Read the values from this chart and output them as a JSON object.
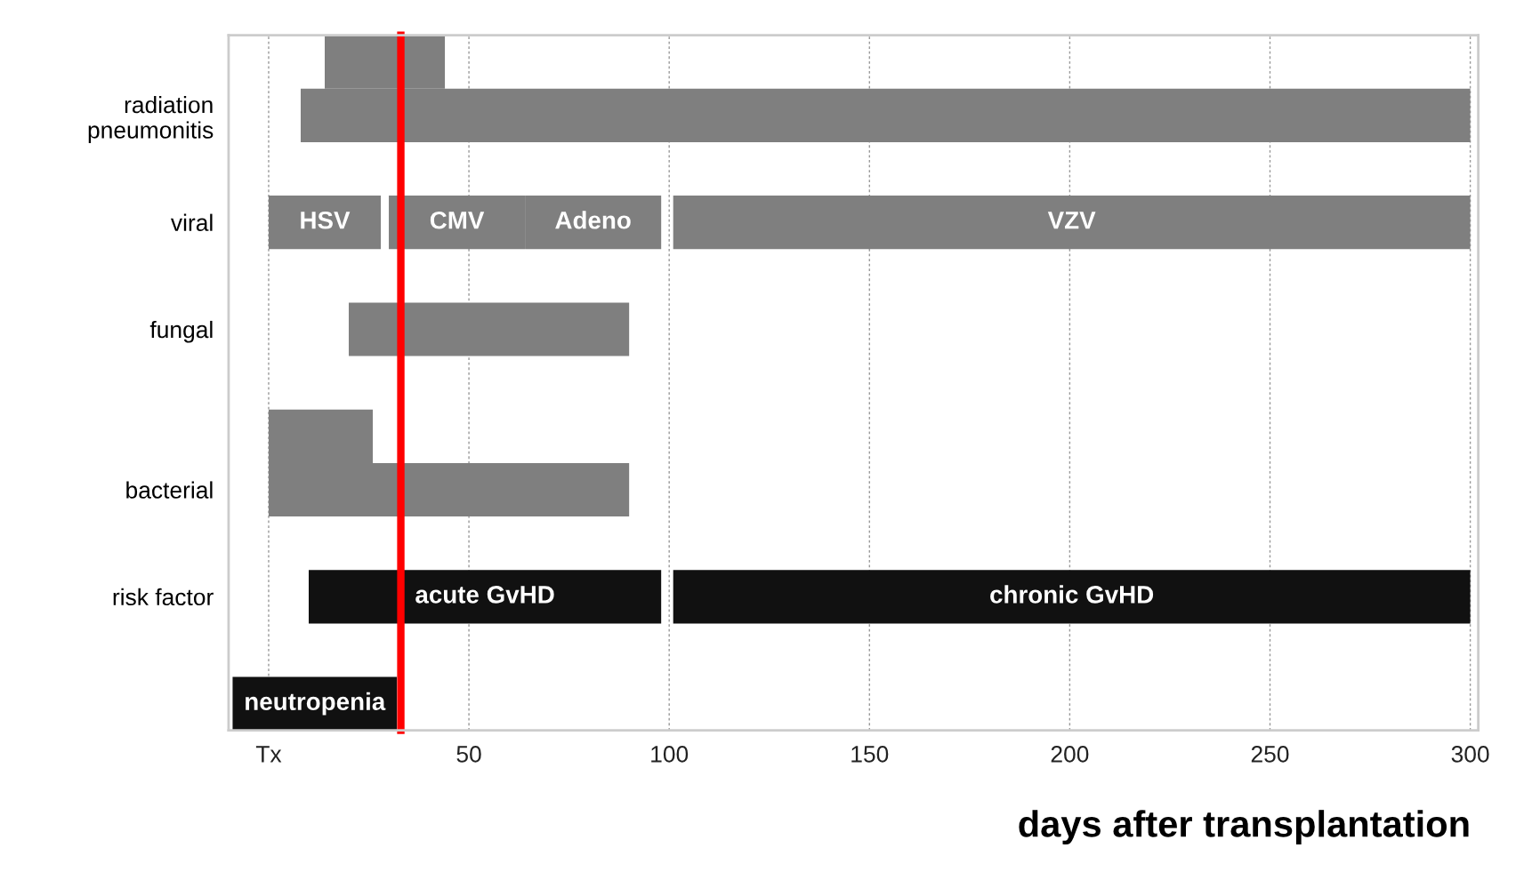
{
  "chart_data": {
    "type": "bar",
    "orientation": "horizontal",
    "xlabel": "days after transplantation",
    "categories": [
      null,
      "radiation pneumonitis",
      null,
      "viral",
      null,
      "fungal",
      null,
      null,
      "bacterial",
      null,
      "risk factor",
      null,
      null
    ],
    "series": [
      {
        "color": "#7f7f7f",
        "values": [
          30,
          292,
          null,
          28,
          null,
          70,
          null,
          26,
          90,
          null,
          null,
          null,
          null
        ],
        "base": [
          14,
          8,
          null,
          0,
          null,
          20,
          null,
          0,
          0,
          null,
          null,
          null,
          null
        ],
        "value_labels": [
          null,
          null,
          null,
          "HSV",
          null,
          null,
          null,
          null,
          null,
          null,
          null,
          null,
          null
        ]
      },
      {
        "color": "#7f7f7f",
        "values": [
          null,
          null,
          null,
          34,
          null,
          null,
          null,
          null,
          null,
          null,
          null,
          null,
          null
        ],
        "base": [
          null,
          null,
          null,
          30,
          null,
          null,
          null,
          null,
          null,
          null,
          null,
          null,
          null
        ],
        "value_labels": [
          null,
          null,
          null,
          "CMV",
          null,
          null,
          null,
          null,
          null,
          null,
          null,
          null,
          null
        ]
      },
      {
        "color": "#7f7f7f",
        "values": [
          null,
          null,
          null,
          34,
          null,
          null,
          null,
          null,
          null,
          null,
          null,
          null,
          null
        ],
        "base": [
          null,
          null,
          null,
          64,
          null,
          null,
          null,
          null,
          null,
          null,
          null,
          null,
          null
        ],
        "value_labels": [
          null,
          null,
          null,
          "Adeno",
          null,
          null,
          null,
          null,
          null,
          null,
          null,
          null,
          null
        ]
      },
      {
        "color": "#7f7f7f",
        "values": [
          null,
          null,
          null,
          199,
          null,
          null,
          null,
          null,
          null,
          null,
          null,
          null,
          null
        ],
        "base": [
          null,
          null,
          null,
          101,
          null,
          null,
          null,
          null,
          null,
          null,
          null,
          null,
          null
        ],
        "value_labels": [
          null,
          null,
          null,
          "VZV",
          null,
          null,
          null,
          null,
          null,
          null,
          null,
          null,
          null
        ]
      },
      {
        "color": "#111111",
        "values": [
          null,
          null,
          null,
          null,
          null,
          null,
          null,
          null,
          null,
          null,
          88,
          null,
          41
        ],
        "base": [
          null,
          null,
          null,
          null,
          null,
          null,
          null,
          null,
          null,
          null,
          10,
          null,
          -9
        ],
        "value_labels": [
          null,
          null,
          null,
          null,
          null,
          null,
          null,
          null,
          null,
          null,
          "acute GvHD",
          null,
          "neutropenia"
        ]
      },
      {
        "color": "#111111",
        "values": [
          null,
          null,
          null,
          null,
          null,
          null,
          null,
          null,
          null,
          null,
          199,
          null,
          null
        ],
        "base": [
          null,
          null,
          null,
          null,
          null,
          null,
          null,
          null,
          null,
          null,
          101,
          null,
          null
        ],
        "value_labels": [
          null,
          null,
          null,
          null,
          null,
          null,
          null,
          null,
          null,
          null,
          "chronic GvHD",
          null,
          null
        ]
      }
    ],
    "xlim": [
      -10,
      302
    ],
    "xticks": [
      {
        "value": 0,
        "label": "Tx"
      },
      50,
      100,
      150,
      200,
      250,
      300
    ],
    "grid": "x",
    "ref_lines": [
      {
        "axis": "x",
        "value": 33,
        "color": "#ff0000"
      }
    ]
  }
}
